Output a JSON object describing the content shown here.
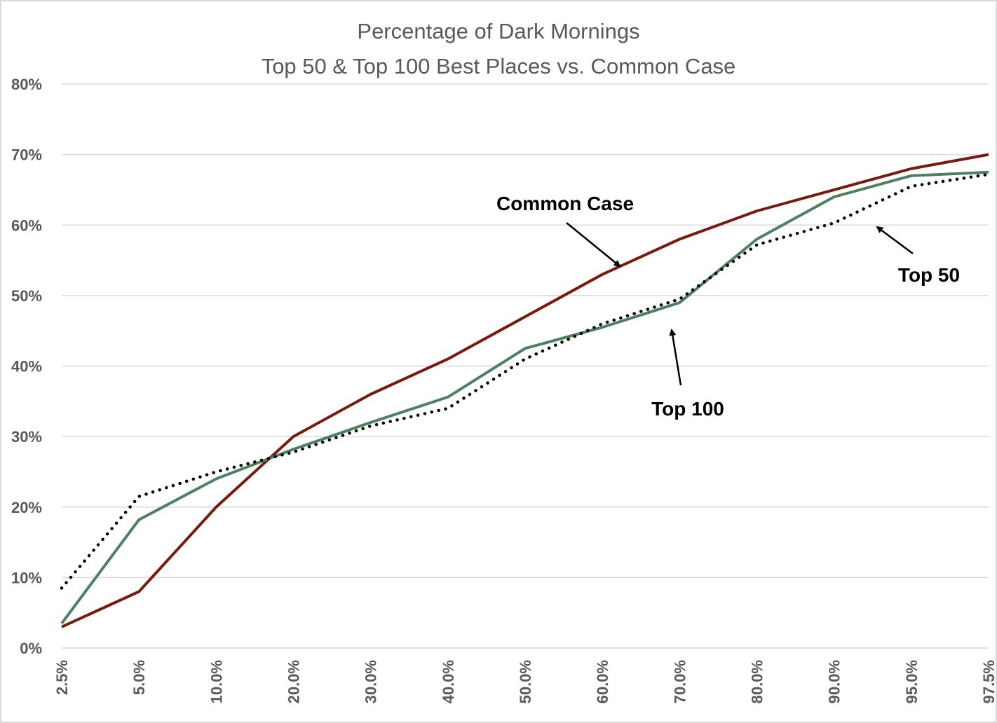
{
  "chart_data": {
    "type": "line",
    "title": [
      "Percentage of Dark Mornings",
      "Top 50 & Top 100 Best Places vs. Common Case"
    ],
    "xlabel": "",
    "ylabel": "",
    "categories": [
      "2.5%",
      "5.0%",
      "10.0%",
      "20.0%",
      "30.0%",
      "40.0%",
      "50.0%",
      "60.0%",
      "70.0%",
      "80.0%",
      "90.0%",
      "95.0%",
      "97.5%"
    ],
    "ylim": [
      0,
      80
    ],
    "yticks": [
      0,
      10,
      20,
      30,
      40,
      50,
      60,
      70,
      80
    ],
    "ytick_labels": [
      "0%",
      "10%",
      "20%",
      "30%",
      "40%",
      "50%",
      "60%",
      "70%",
      "80%"
    ],
    "grid": true,
    "legend": "none",
    "series": [
      {
        "name": "Common Case",
        "color": "#771B10",
        "style": "solid",
        "values": [
          3,
          8,
          20,
          30,
          36,
          41,
          47,
          53,
          58,
          62,
          65,
          68,
          70
        ]
      },
      {
        "name": "Top 100",
        "color": "#4E8060",
        "style": "solid",
        "values": [
          3.5,
          18.2,
          24,
          28.2,
          32,
          35.6,
          42.5,
          45.5,
          49,
          58,
          64,
          67,
          67.5
        ]
      },
      {
        "name": "Top 50",
        "color": "#000000",
        "style": "dotted",
        "values": [
          8.5,
          21.5,
          25,
          27.8,
          31.5,
          34,
          41,
          46,
          49.5,
          57.2,
          60.3,
          65.5,
          67.2
        ]
      }
    ],
    "annotations": [
      {
        "text": "Common Case",
        "series": "Common Case"
      },
      {
        "text": "Top 50",
        "series": "Top 50"
      },
      {
        "text": "Top 100",
        "series": "Top 100"
      }
    ]
  }
}
